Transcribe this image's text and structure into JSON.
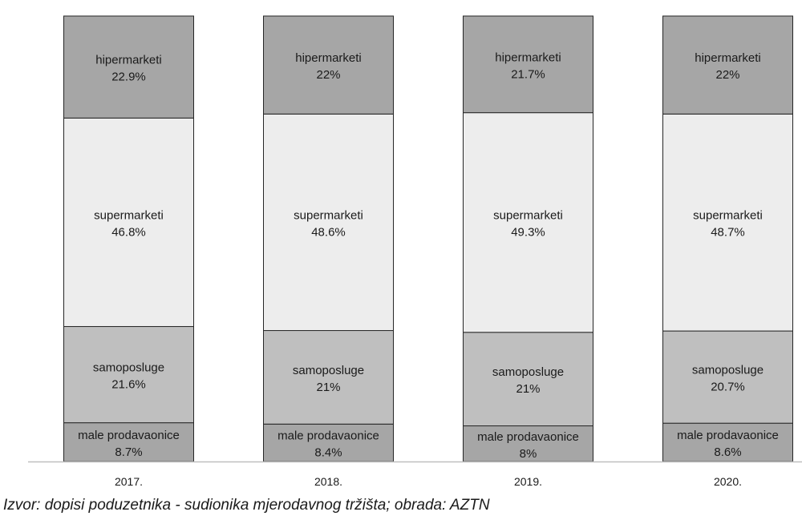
{
  "source": "Izvor: dopisi poduzetnika - sudionika mjerodavnog tržišta; obrada: AZTN",
  "chart_data": {
    "type": "bar",
    "stacked": true,
    "normalized": true,
    "categories": [
      "2017.",
      "2018.",
      "2019.",
      "2020."
    ],
    "series": [
      {
        "name": "male prodavaonice",
        "values": [
          8.7,
          8.4,
          8,
          8.6
        ],
        "labels": [
          "8.7%",
          "8.4%",
          "8%",
          "8.6%"
        ],
        "color": "#a6a6a6"
      },
      {
        "name": "samoposluge",
        "values": [
          21.6,
          21,
          21,
          20.7
        ],
        "labels": [
          "21.6%",
          "21%",
          "21%",
          "20.7%"
        ],
        "color": "#bfbfbf"
      },
      {
        "name": "supermarketi",
        "values": [
          46.8,
          48.6,
          49.3,
          48.7
        ],
        "labels": [
          "46.8%",
          "48.6%",
          "49.3%",
          "48.7%"
        ],
        "color": "#ededed"
      },
      {
        "name": "hipermarketi",
        "values": [
          22.9,
          22,
          21.7,
          22
        ],
        "labels": [
          "22.9%",
          "22%",
          "21.7%",
          "22%"
        ],
        "color": "#a6a6a6"
      }
    ],
    "ylim": [
      0,
      100
    ],
    "grid": false,
    "legend": "none",
    "title": "",
    "xlabel": "",
    "ylabel": "",
    "axis_color": "#bfbfbf",
    "bar_border_color": "#262626"
  }
}
